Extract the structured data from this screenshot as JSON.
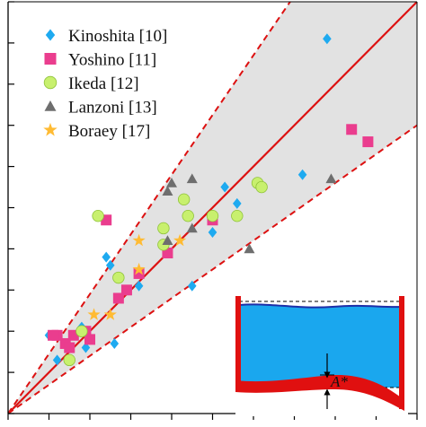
{
  "chart_data": {
    "type": "scatter",
    "title": "",
    "xlabel": "",
    "ylabel": "",
    "xlim": [
      0,
      1
    ],
    "ylim": [
      0,
      1
    ],
    "grid": false,
    "legend_position": "top-left",
    "reference_line": {
      "label": "",
      "color": "#dd1111",
      "style": "solid",
      "slope": 1
    },
    "bound_lines": [
      {
        "color": "#dd1111",
        "style": "dashed",
        "slope": 1.45
      },
      {
        "color": "#dd1111",
        "style": "dashed",
        "slope": 0.7
      }
    ],
    "band_fill": "#e2e2e2",
    "series": [
      {
        "name": "Kinoshita [10]",
        "marker": "diamond",
        "color": "#1eaaf0",
        "points": [
          [
            0.78,
            0.91
          ],
          [
            0.72,
            0.58
          ],
          [
            0.53,
            0.55
          ],
          [
            0.5,
            0.44
          ],
          [
            0.45,
            0.31
          ],
          [
            0.24,
            0.38
          ],
          [
            0.19,
            0.16
          ],
          [
            0.25,
            0.36
          ],
          [
            0.12,
            0.13
          ],
          [
            0.18,
            0.21
          ],
          [
            0.56,
            0.51
          ],
          [
            0.1,
            0.19
          ],
          [
            0.26,
            0.17
          ],
          [
            0.32,
            0.31
          ]
        ]
      },
      {
        "name": "Yoshino [11]",
        "marker": "square",
        "color": "#ea3d8e",
        "points": [
          [
            0.84,
            0.69
          ],
          [
            0.88,
            0.66
          ],
          [
            0.24,
            0.47
          ],
          [
            0.39,
            0.39
          ],
          [
            0.5,
            0.47
          ],
          [
            0.29,
            0.3
          ],
          [
            0.32,
            0.34
          ],
          [
            0.27,
            0.28
          ],
          [
            0.14,
            0.17
          ],
          [
            0.12,
            0.19
          ],
          [
            0.19,
            0.2
          ],
          [
            0.2,
            0.18
          ],
          [
            0.15,
            0.16
          ],
          [
            0.11,
            0.19
          ],
          [
            0.16,
            0.19
          ]
        ]
      },
      {
        "name": "Ikeda [12]",
        "marker": "circle",
        "color": "#c8f06e",
        "points": [
          [
            0.61,
            0.56
          ],
          [
            0.62,
            0.55
          ],
          [
            0.43,
            0.52
          ],
          [
            0.22,
            0.48
          ],
          [
            0.38,
            0.45
          ],
          [
            0.44,
            0.48
          ],
          [
            0.5,
            0.48
          ],
          [
            0.56,
            0.48
          ],
          [
            0.27,
            0.33
          ],
          [
            0.18,
            0.2
          ],
          [
            0.15,
            0.13
          ],
          [
            0.38,
            0.41
          ]
        ]
      },
      {
        "name": "Lanzoni [13]",
        "marker": "triangle",
        "color": "#6e6e6e",
        "points": [
          [
            0.79,
            0.57
          ],
          [
            0.4,
            0.56
          ],
          [
            0.45,
            0.57
          ],
          [
            0.39,
            0.54
          ],
          [
            0.45,
            0.45
          ],
          [
            0.39,
            0.42
          ],
          [
            0.59,
            0.4
          ]
        ]
      },
      {
        "name": "Boraey [17]",
        "marker": "star",
        "color": "#ffbb33",
        "points": [
          [
            0.32,
            0.42
          ],
          [
            0.42,
            0.42
          ],
          [
            0.32,
            0.35
          ],
          [
            0.21,
            0.24
          ],
          [
            0.25,
            0.24
          ]
        ]
      }
    ],
    "inset": {
      "label": "A*",
      "description_hidden": true
    }
  }
}
